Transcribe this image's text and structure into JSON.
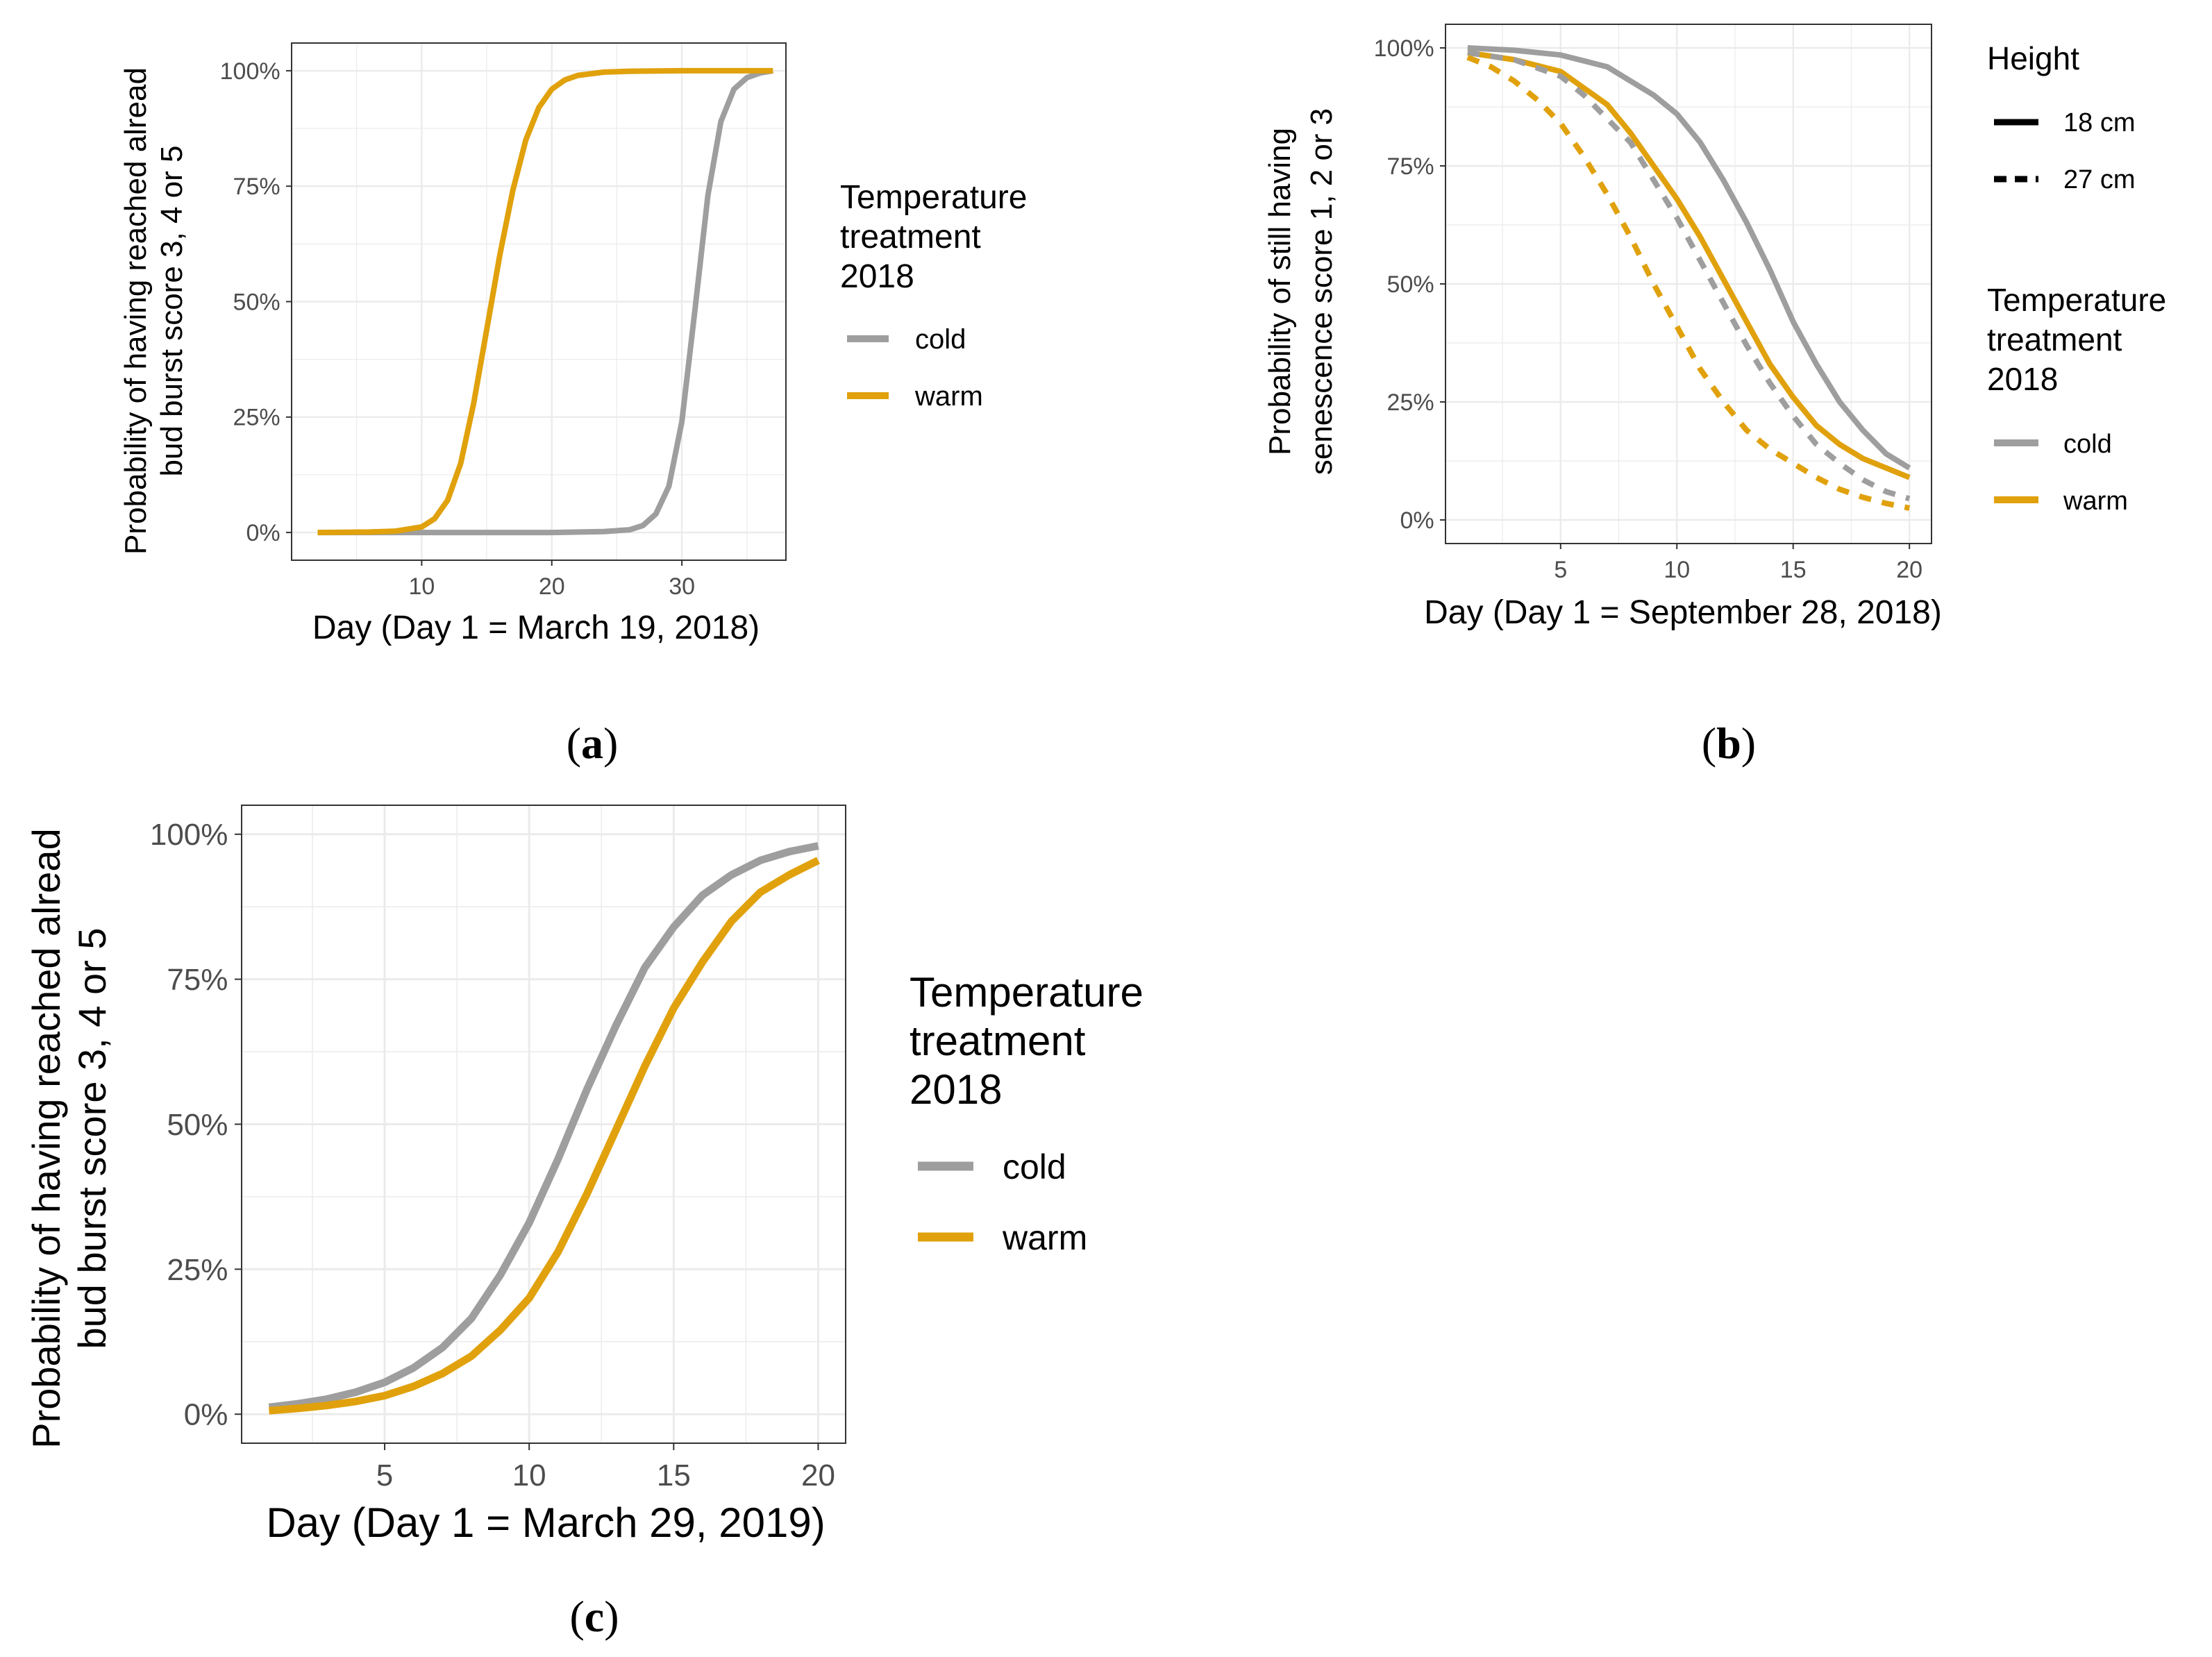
{
  "colors": {
    "cold": "#9e9e9e",
    "warm": "#e0a10c",
    "grid": "#ebebeb",
    "panel_border": "#333333",
    "axis_text": "#4d4d4d"
  },
  "chart_data": [
    {
      "id": "a",
      "type": "line",
      "panel_label": "a",
      "xlabel": "Day (Day 1 = March 19, 2018)",
      "ylabel": [
        "Probability of having reached alread",
        "bud burst score 3, 4 or 5"
      ],
      "xlim": [
        0,
        38
      ],
      "ylim": [
        -0.06,
        1.06
      ],
      "xticks": [
        10,
        20,
        30
      ],
      "xtick_labels": [
        "10",
        "20",
        "30"
      ],
      "yticks": [
        0,
        0.25,
        0.5,
        0.75,
        1
      ],
      "ytick_labels": [
        "0%",
        "25%",
        "50%",
        "75%",
        "100%"
      ],
      "grid": true,
      "legend": {
        "title": [
          "Temperature",
          "treatment",
          "2018"
        ],
        "entries": [
          "cold",
          "warm"
        ],
        "placement": "right"
      },
      "series": [
        {
          "name": "cold",
          "color": "#9e9e9e",
          "dash": "solid",
          "x": [
            2,
            20,
            24,
            26,
            27,
            28,
            29,
            30,
            31,
            32,
            33,
            34,
            35,
            36,
            37
          ],
          "y": [
            0.0,
            0.0,
            0.002,
            0.006,
            0.015,
            0.04,
            0.1,
            0.24,
            0.48,
            0.73,
            0.89,
            0.96,
            0.985,
            0.995,
            1.0
          ]
        },
        {
          "name": "warm",
          "color": "#e0a10c",
          "dash": "solid",
          "x": [
            2,
            6,
            8,
            10,
            11,
            12,
            13,
            14,
            15,
            16,
            17,
            18,
            19,
            20,
            21,
            22,
            24,
            26,
            30,
            37
          ],
          "y": [
            0.0,
            0.001,
            0.003,
            0.012,
            0.03,
            0.07,
            0.15,
            0.28,
            0.44,
            0.6,
            0.74,
            0.85,
            0.92,
            0.96,
            0.98,
            0.99,
            0.997,
            0.999,
            1.0,
            1.0
          ]
        }
      ]
    },
    {
      "id": "b",
      "type": "line",
      "panel_label": "b",
      "xlabel": "Day (Day 1 = September 28, 2018)",
      "ylabel": [
        "Probability of still having",
        "senescence score  1, 2 or 3"
      ],
      "xlim": [
        0.05,
        20.95
      ],
      "ylim": [
        -0.05,
        1.05
      ],
      "xticks": [
        5,
        10,
        15,
        20
      ],
      "xtick_labels": [
        "5",
        "10",
        "15",
        "20"
      ],
      "yticks": [
        0,
        0.25,
        0.5,
        0.75,
        1
      ],
      "ytick_labels": [
        "0%",
        "25%",
        "50%",
        "75%",
        "100%"
      ],
      "grid": true,
      "legend": {
        "height_title": "Height",
        "height_entries": [
          "18 cm",
          "27 cm"
        ],
        "title": [
          "Temperature",
          "treatment",
          "2018"
        ],
        "entries": [
          "cold",
          "warm"
        ],
        "placement": "right"
      },
      "series": [
        {
          "name": "cold",
          "height": "18 cm",
          "color": "#9e9e9e",
          "dash": "solid",
          "x": [
            1,
            3,
            5,
            7,
            9,
            10,
            11,
            12,
            13,
            14,
            15,
            16,
            17,
            18,
            19,
            20
          ],
          "y": [
            1.0,
            0.995,
            0.985,
            0.96,
            0.9,
            0.86,
            0.8,
            0.72,
            0.63,
            0.53,
            0.42,
            0.33,
            0.25,
            0.19,
            0.14,
            0.11
          ]
        },
        {
          "name": "warm",
          "height": "18 cm",
          "color": "#e0a10c",
          "dash": "solid",
          "x": [
            1,
            3,
            5,
            7,
            8,
            9,
            10,
            11,
            12,
            13,
            14,
            15,
            16,
            17,
            18,
            19,
            20
          ],
          "y": [
            0.99,
            0.975,
            0.95,
            0.88,
            0.82,
            0.75,
            0.68,
            0.6,
            0.51,
            0.42,
            0.33,
            0.26,
            0.2,
            0.16,
            0.13,
            0.11,
            0.09
          ]
        },
        {
          "name": "cold",
          "height": "27 cm",
          "color": "#9e9e9e",
          "dash": "dashed",
          "x": [
            1,
            3,
            5,
            6,
            7,
            8,
            9,
            10,
            11,
            12,
            13,
            14,
            15,
            16,
            17,
            18,
            19,
            20
          ],
          "y": [
            0.99,
            0.975,
            0.94,
            0.9,
            0.85,
            0.8,
            0.72,
            0.64,
            0.55,
            0.46,
            0.37,
            0.29,
            0.22,
            0.16,
            0.12,
            0.085,
            0.06,
            0.045
          ]
        },
        {
          "name": "warm",
          "height": "27 cm",
          "color": "#e0a10c",
          "dash": "dashed",
          "x": [
            1,
            2,
            3,
            4,
            5,
            6,
            7,
            8,
            9,
            10,
            11,
            12,
            13,
            14,
            15,
            16,
            17,
            18,
            19,
            20
          ],
          "y": [
            0.98,
            0.96,
            0.93,
            0.89,
            0.84,
            0.77,
            0.69,
            0.6,
            0.5,
            0.41,
            0.32,
            0.25,
            0.19,
            0.15,
            0.12,
            0.09,
            0.065,
            0.048,
            0.035,
            0.025
          ]
        }
      ]
    },
    {
      "id": "c",
      "type": "line",
      "panel_label": "c",
      "xlabel": "Day (Day 1 = March 29, 2019)",
      "ylabel": [
        "Probability of having reached alread",
        "bud burst score 3, 4 or 5"
      ],
      "xlim": [
        0.05,
        20.95
      ],
      "ylim": [
        -0.05,
        1.05
      ],
      "xticks": [
        5,
        10,
        15,
        20
      ],
      "xtick_labels": [
        "5",
        "10",
        "15",
        "20"
      ],
      "yticks": [
        0,
        0.25,
        0.5,
        0.75,
        1
      ],
      "ytick_labels": [
        "0%",
        "25%",
        "50%",
        "75%",
        "100%"
      ],
      "grid": true,
      "legend": {
        "title": [
          "Temperature",
          "treatment",
          "2018"
        ],
        "entries": [
          "cold",
          "warm"
        ],
        "placement": "right"
      },
      "series": [
        {
          "name": "cold",
          "color": "#9e9e9e",
          "dash": "solid",
          "x": [
            1,
            2,
            3,
            4,
            5,
            6,
            7,
            8,
            9,
            10,
            11,
            12,
            13,
            14,
            15,
            16,
            17,
            18,
            19,
            20
          ],
          "y": [
            0.012,
            0.018,
            0.026,
            0.038,
            0.055,
            0.08,
            0.115,
            0.165,
            0.24,
            0.33,
            0.44,
            0.56,
            0.67,
            0.77,
            0.84,
            0.895,
            0.93,
            0.955,
            0.97,
            0.98
          ]
        },
        {
          "name": "warm",
          "color": "#e0a10c",
          "dash": "solid",
          "x": [
            1,
            2,
            3,
            4,
            5,
            6,
            7,
            8,
            9,
            10,
            11,
            12,
            13,
            14,
            15,
            16,
            17,
            18,
            19,
            20
          ],
          "y": [
            0.006,
            0.01,
            0.015,
            0.022,
            0.032,
            0.048,
            0.07,
            0.1,
            0.145,
            0.2,
            0.28,
            0.38,
            0.49,
            0.6,
            0.7,
            0.78,
            0.85,
            0.9,
            0.93,
            0.955
          ]
        }
      ]
    }
  ]
}
